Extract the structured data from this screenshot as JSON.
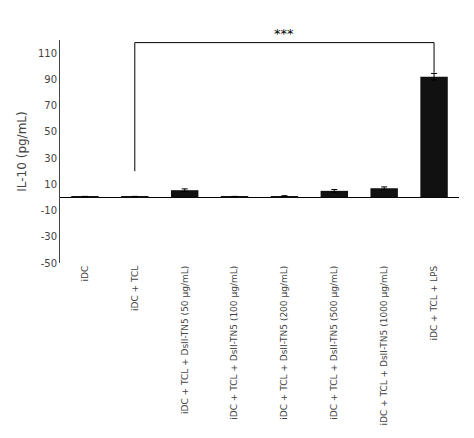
{
  "chart_data": {
    "type": "bar",
    "categories": [
      "iDC",
      "iDC + TCL",
      "iDC + TCL + DsII-TN5 (50 μg/mL)",
      "iDC + TCL + DsII-TN5 (100 μg/mL)",
      "iDC + TCL + DsII-TN5 (200 μg/mL)",
      "iDC + TCL + DsII-TN5 (500 μg/mL)",
      "iDC + TCL + DsII-TN5 (1000 μg/mL)",
      "iDC + TCL + LPS"
    ],
    "values": [
      0.5,
      0.5,
      5.5,
      0.5,
      1.0,
      5.0,
      7.0,
      92.0
    ],
    "errors": [
      0.3,
      0.3,
      1.0,
      0.3,
      0.3,
      1.0,
      1.0,
      2.5
    ],
    "color": "#111111",
    "ylabel": "IL-10 (pg/mL)",
    "ylim": [
      -50,
      120
    ],
    "yticks": [
      -50,
      -30,
      -10,
      10,
      30,
      50,
      70,
      90,
      110
    ],
    "grid": false,
    "annotations": [
      {
        "text": "***",
        "from": "iDC + TCL",
        "to": "iDC + TCL + LPS",
        "y": 118,
        "y_from": 20,
        "y_to": 95
      }
    ]
  }
}
